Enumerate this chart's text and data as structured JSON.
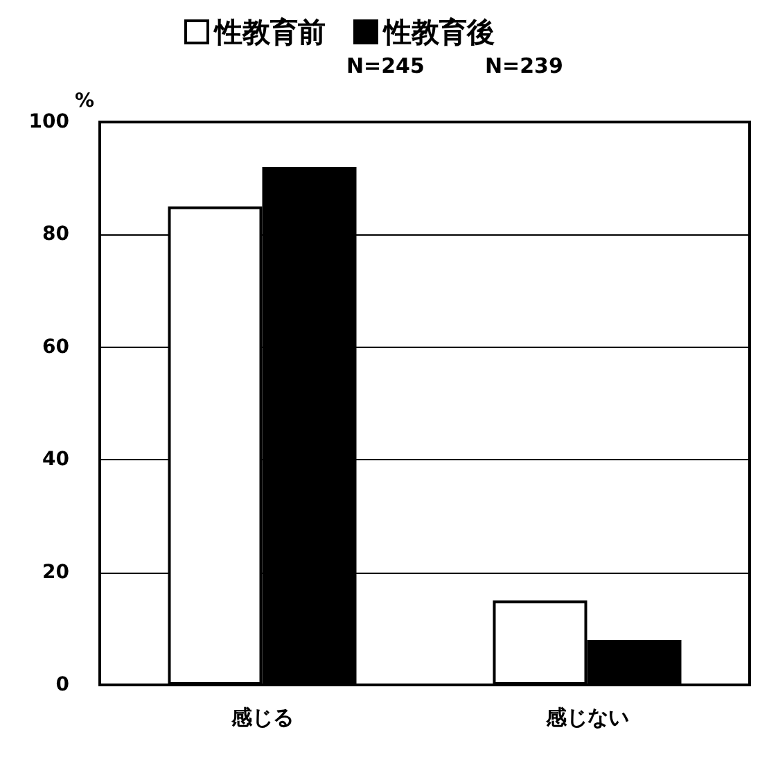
{
  "chart_data": {
    "type": "bar",
    "ylabel": "%",
    "categories": [
      "感じる",
      "感じない"
    ],
    "series": [
      {
        "name": "性教育前",
        "color": "#ffffff",
        "values": [
          85,
          15
        ]
      },
      {
        "name": "性教育後",
        "color": "#000000",
        "values": [
          92,
          8
        ]
      }
    ],
    "ylim": [
      0,
      100
    ],
    "yticks": [
      0,
      20,
      40,
      60,
      80,
      100
    ],
    "grid": "y",
    "legend": "top",
    "annotations": [
      "N=245",
      "N=239"
    ]
  }
}
